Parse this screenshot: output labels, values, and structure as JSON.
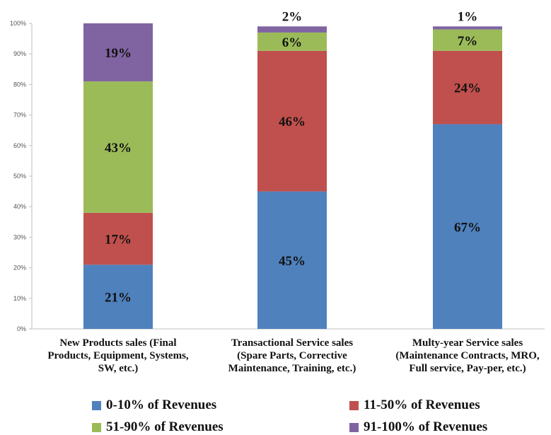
{
  "chart_data": {
    "type": "bar",
    "stacked": true,
    "title": "",
    "xlabel": "",
    "ylabel": "",
    "ylim": [
      0,
      100
    ],
    "yticks": [
      "0%",
      "10%",
      "20%",
      "30%",
      "40%",
      "50%",
      "60%",
      "70%",
      "80%",
      "90%",
      "100%"
    ],
    "grid": false,
    "legend_position": "bottom",
    "categories": [
      [
        "New Products sales (Final",
        "Products, Equipment, Systems,",
        "SW, etc.)"
      ],
      [
        "Transactional Service sales",
        "(Spare Parts, Corrective",
        "Maintenance, Training, etc.)"
      ],
      [
        "Multy-year Service sales",
        "(Maintenance Contracts, MRO,",
        "Full service, Pay-per, etc.)"
      ]
    ],
    "series": [
      {
        "name": "0-10% of Revenues",
        "color": "#4F81BD",
        "values": [
          21,
          45,
          67
        ],
        "labels": [
          "21%",
          "45%",
          "67%"
        ]
      },
      {
        "name": "11-50% of Revenues",
        "color": "#C0504D",
        "values": [
          17,
          46,
          24
        ],
        "labels": [
          "17%",
          "46%",
          "24%"
        ]
      },
      {
        "name": "51-90% of Revenues",
        "color": "#9BBB59",
        "values": [
          43,
          6,
          7
        ],
        "labels": [
          "43%",
          "6%",
          "7%"
        ]
      },
      {
        "name": "91-100% of Revenues",
        "color": "#8064A2",
        "values": [
          19,
          2,
          1
        ],
        "labels": [
          "19%",
          "2%",
          "1%"
        ]
      }
    ]
  }
}
